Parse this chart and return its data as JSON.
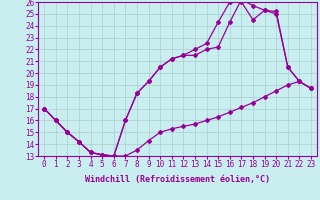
{
  "xlabel": "Windchill (Refroidissement éolien,°C)",
  "xlim": [
    -0.5,
    23.5
  ],
  "ylim": [
    13,
    26
  ],
  "xticks": [
    0,
    1,
    2,
    3,
    4,
    5,
    6,
    7,
    8,
    9,
    10,
    11,
    12,
    13,
    14,
    15,
    16,
    17,
    18,
    19,
    20,
    21,
    22,
    23
  ],
  "yticks": [
    13,
    14,
    15,
    16,
    17,
    18,
    19,
    20,
    21,
    22,
    23,
    24,
    25,
    26
  ],
  "line_color": "#990099",
  "bg_color": "#c8eef0",
  "grid_color": "#aacccc",
  "line1_y": [
    17.0,
    16.0,
    15.0,
    14.2,
    13.3,
    13.1,
    13.0,
    13.0,
    13.5,
    14.3,
    15.0,
    15.3,
    15.5,
    15.7,
    16.0,
    16.3,
    16.7,
    17.1,
    17.5,
    18.0,
    18.5,
    19.0,
    19.3,
    18.7
  ],
  "line2_y": [
    17.0,
    16.0,
    15.0,
    14.2,
    13.3,
    13.1,
    13.0,
    16.0,
    18.3,
    19.3,
    20.5,
    21.2,
    21.5,
    21.5,
    22.0,
    22.2,
    24.3,
    26.2,
    25.7,
    25.3,
    25.2,
    20.5,
    19.3,
    18.7
  ],
  "line3_y": [
    17.0,
    16.0,
    15.0,
    14.2,
    13.3,
    13.1,
    13.0,
    16.0,
    18.3,
    19.3,
    20.5,
    21.2,
    21.5,
    22.0,
    22.5,
    24.3,
    26.0,
    26.0,
    24.5,
    25.3,
    25.0,
    20.5,
    19.3,
    18.7
  ],
  "marker": "D",
  "markersize": 2,
  "linewidth": 0.9,
  "fontsize_xlabel": 6,
  "fontsize_ticks": 5.5
}
